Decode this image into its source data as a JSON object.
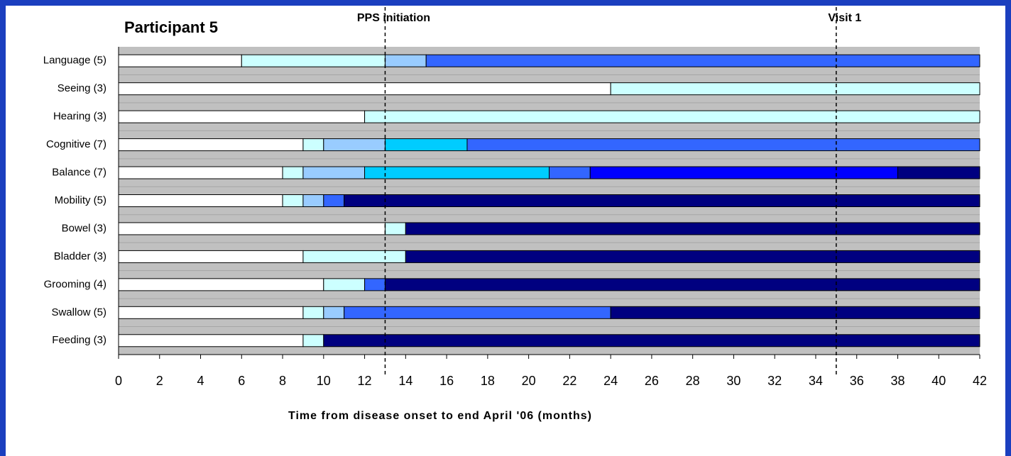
{
  "chart_data": {
    "type": "timeline",
    "title": "Participant 5",
    "x_label": "Time from disease onset to end April '06 (months)",
    "xlim": [
      0,
      42
    ],
    "xticks": [
      0,
      2,
      4,
      6,
      8,
      10,
      12,
      14,
      16,
      18,
      20,
      22,
      24,
      26,
      28,
      30,
      32,
      34,
      36,
      38,
      40,
      42
    ],
    "annotations": [
      {
        "text": "PPS initiation",
        "x": 13
      },
      {
        "text": "Visit 1",
        "x": 35
      }
    ],
    "rows": [
      {
        "label": "Language (5)",
        "segments": [
          6,
          7,
          2,
          27
        ],
        "colors": [
          "#ffffff",
          "#ccffff",
          "#99ccff",
          "#3366ff"
        ]
      },
      {
        "label": "Seeing (3)",
        "segments": [
          24,
          18
        ],
        "colors": [
          "#ffffff",
          "#ccffff"
        ]
      },
      {
        "label": "Hearing (3)",
        "segments": [
          12,
          30
        ],
        "colors": [
          "#ffffff",
          "#ccffff"
        ]
      },
      {
        "label": "Cognitive (7)",
        "segments": [
          9,
          1,
          3,
          4,
          25
        ],
        "colors": [
          "#ffffff",
          "#ccffff",
          "#99ccff",
          "#00ccff",
          "#3366ff"
        ]
      },
      {
        "label": "Balance (7)",
        "segments": [
          8,
          1,
          3,
          9,
          2,
          15,
          4
        ],
        "colors": [
          "#ffffff",
          "#ccffff",
          "#99ccff",
          "#00ccff",
          "#3366ff",
          "#0000ff",
          "#000080"
        ]
      },
      {
        "label": "Mobility (5)",
        "segments": [
          8,
          1,
          1,
          1,
          31
        ],
        "colors": [
          "#ffffff",
          "#ccffff",
          "#99ccff",
          "#3366ff",
          "#000080"
        ]
      },
      {
        "label": "Bowel (3)",
        "segments": [
          13,
          1,
          28
        ],
        "colors": [
          "#ffffff",
          "#ccffff",
          "#000080"
        ]
      },
      {
        "label": "Bladder (3)",
        "segments": [
          9,
          5,
          28
        ],
        "colors": [
          "#ffffff",
          "#ccffff",
          "#000080"
        ]
      },
      {
        "label": "Grooming (4)",
        "segments": [
          10,
          2,
          1,
          29
        ],
        "colors": [
          "#ffffff",
          "#ccffff",
          "#3366ff",
          "#000080"
        ]
      },
      {
        "label": "Swallow (5)",
        "segments": [
          9,
          1,
          1,
          13,
          18
        ],
        "colors": [
          "#ffffff",
          "#ccffff",
          "#99ccff",
          "#3366ff",
          "#000080"
        ]
      },
      {
        "label": "Feeding (3)",
        "segments": [
          9,
          1,
          32
        ],
        "colors": [
          "#ffffff",
          "#ccffff",
          "#000080"
        ]
      }
    ]
  }
}
